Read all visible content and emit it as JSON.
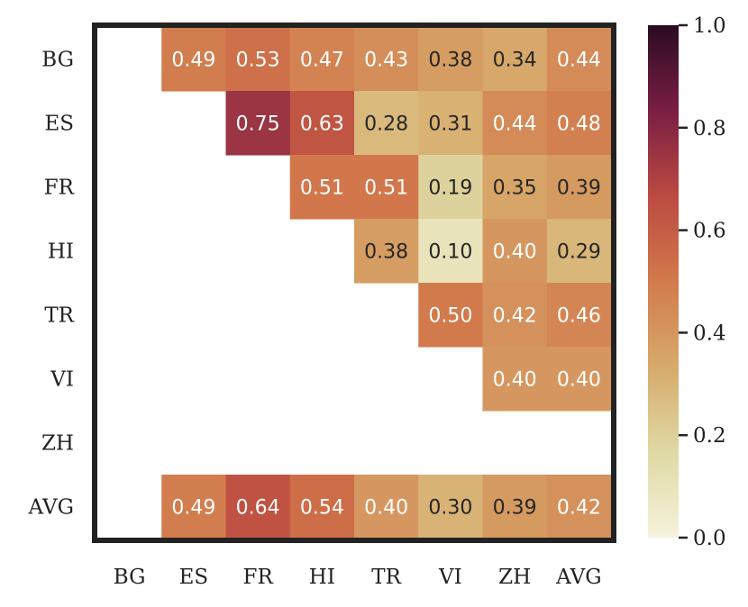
{
  "chart_data": {
    "type": "heatmap",
    "title": "",
    "xlabel": "",
    "ylabel": "",
    "rows": [
      "BG",
      "ES",
      "FR",
      "HI",
      "TR",
      "VI",
      "ZH",
      "AVG"
    ],
    "cols": [
      "BG",
      "ES",
      "FR",
      "HI",
      "TR",
      "VI",
      "ZH",
      "AVG"
    ],
    "values": [
      [
        null,
        0.49,
        0.53,
        0.47,
        0.43,
        0.38,
        0.34,
        0.44
      ],
      [
        null,
        null,
        0.75,
        0.63,
        0.28,
        0.31,
        0.44,
        0.48
      ],
      [
        null,
        null,
        null,
        0.51,
        0.51,
        0.19,
        0.35,
        0.39
      ],
      [
        null,
        null,
        null,
        null,
        0.38,
        0.1,
        0.4,
        0.29
      ],
      [
        null,
        null,
        null,
        null,
        null,
        0.5,
        0.42,
        0.46
      ],
      [
        null,
        null,
        null,
        null,
        null,
        null,
        0.4,
        0.4
      ],
      [
        null,
        null,
        null,
        null,
        null,
        null,
        null,
        null
      ],
      [
        null,
        0.49,
        0.64,
        0.54,
        0.4,
        0.3,
        0.39,
        0.42
      ]
    ],
    "value_format": "0.00",
    "colorbar": {
      "range": [
        0.0,
        1.0
      ],
      "ticks": [
        "0.0",
        "0.2",
        "0.4",
        "0.6",
        "0.8",
        "1.0"
      ],
      "colormap": [
        "#f5f3dc",
        "#dfd9a4",
        "#d7aa6b",
        "#d27a4c",
        "#bc4a41",
        "#7a1e44",
        "#2b0b20"
      ]
    },
    "frame_color": "#222222",
    "grid": false
  }
}
